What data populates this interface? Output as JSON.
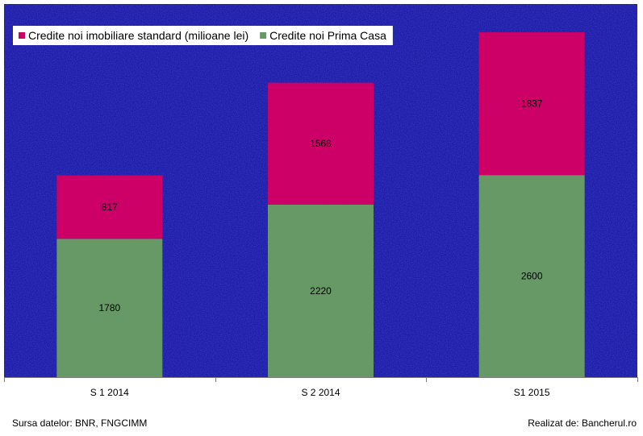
{
  "colors": {
    "plot_background": "#1c1ca8",
    "standard": "#cc0066",
    "prima_casa": "#669966",
    "axis": "#808080"
  },
  "chart_data": {
    "type": "bar",
    "stacked": true,
    "categories": [
      "S 1 2014",
      "S 2 2014",
      "S1 2015"
    ],
    "series": [
      {
        "name": "Credite noi Prima Casa",
        "values": [
          1780,
          2220,
          2600
        ],
        "color": "#669966"
      },
      {
        "name": "Credite noi imobiliare standard (milioane lei)",
        "values": [
          817,
          1568,
          1837
        ],
        "color": "#cc0066"
      }
    ],
    "legend_order": [
      "Credite noi imobiliare standard (milioane lei)",
      "Credite noi Prima Casa"
    ],
    "ylim": [
      0,
      4800
    ],
    "legend_position": "top-left",
    "grid": false
  },
  "footer": {
    "source": "Sursa datelor: BNR, FNGCIMM",
    "credit": "Realizat de: Bancherul.ro"
  }
}
